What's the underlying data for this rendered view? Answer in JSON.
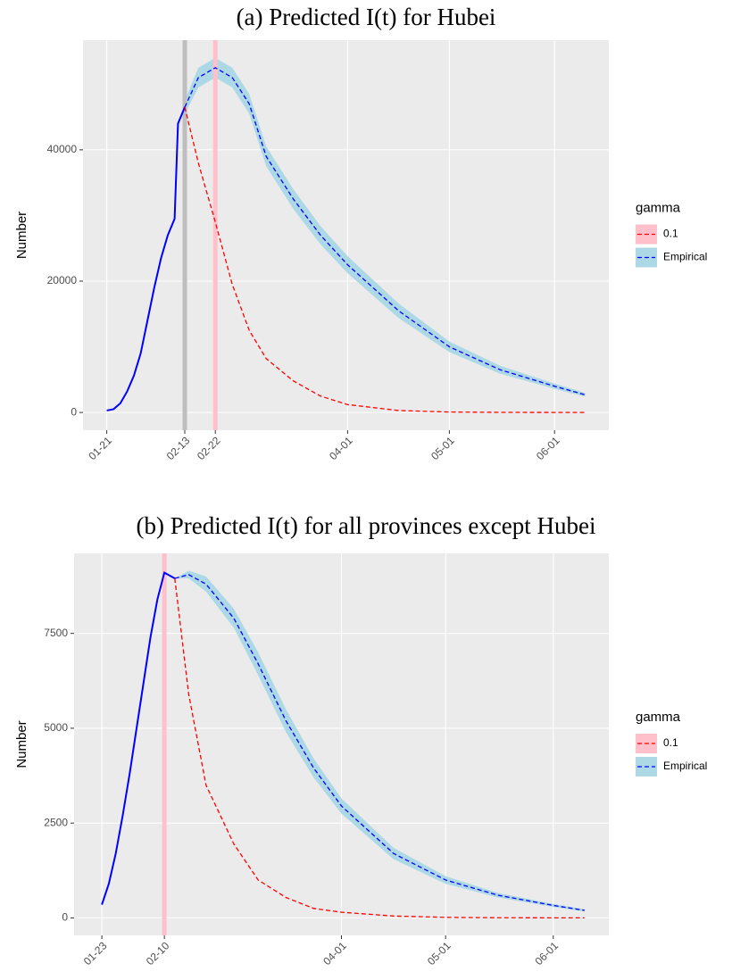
{
  "chart_data": [
    {
      "type": "line",
      "title": "(a) Predicted I(t) for Hubei",
      "ylabel": "Number",
      "legend_title": "gamma",
      "legend": "right",
      "grid": true,
      "x": [
        "01-21",
        "01-23",
        "01-25",
        "01-27",
        "01-29",
        "01-31",
        "02-02",
        "02-04",
        "02-06",
        "02-08",
        "02-10",
        "02-11",
        "02-13",
        "02-17",
        "02-22",
        "02-27",
        "03-03",
        "03-08",
        "03-16",
        "03-24",
        "04-01",
        "04-16",
        "05-01",
        "05-16",
        "06-01",
        "06-10"
      ],
      "xlim": [
        "01-14",
        "06-17"
      ],
      "xticks": [
        "01-21",
        "02-13",
        "02-22",
        "04-01",
        "05-01",
        "06-01"
      ],
      "ylim": [
        -2700,
        56700
      ],
      "yticks": [
        0,
        20000,
        40000
      ],
      "vlines": [
        {
          "x": "02-13",
          "color": "#bebebe"
        },
        {
          "x": "02-22",
          "color": "#ffc0cb"
        }
      ],
      "series": [
        {
          "color": "#0000ff",
          "linetype": "solid",
          "values": [
            300,
            500,
            1400,
            3200,
            5600,
            9000,
            14000,
            19000,
            23500,
            27000,
            29500,
            44000,
            46500,
            null,
            null,
            null,
            null,
            null,
            null,
            null,
            null,
            null,
            null,
            null,
            null,
            null
          ]
        },
        {
          "name": "0.1",
          "color": "#ff0000",
          "fill": "#ffc0cb",
          "linetype": "dashed",
          "values": [
            null,
            null,
            null,
            null,
            null,
            null,
            null,
            null,
            null,
            null,
            null,
            null,
            46500,
            38000,
            29000,
            19500,
            12500,
            8200,
            4800,
            2500,
            1200,
            300,
            70,
            20,
            5,
            2
          ]
        },
        {
          "name": "Empirical",
          "color": "#0000ff",
          "fill": "#add8e6",
          "linetype": "dashed",
          "values": [
            null,
            null,
            null,
            null,
            null,
            null,
            null,
            null,
            null,
            null,
            null,
            null,
            46500,
            51000,
            52500,
            51000,
            47000,
            39000,
            32500,
            27000,
            22500,
            15500,
            10000,
            6500,
            4000,
            2700
          ],
          "lower": [
            null,
            null,
            null,
            null,
            null,
            null,
            null,
            null,
            null,
            null,
            null,
            null,
            45500,
            49500,
            51000,
            49500,
            45500,
            37500,
            31000,
            25600,
            21200,
            14400,
            9200,
            5900,
            3600,
            2400
          ],
          "upper": [
            null,
            null,
            null,
            null,
            null,
            null,
            null,
            null,
            null,
            null,
            null,
            null,
            47500,
            52500,
            54000,
            52500,
            48500,
            40500,
            34000,
            28400,
            23800,
            16600,
            10800,
            7100,
            4400,
            3000
          ]
        }
      ]
    },
    {
      "type": "line",
      "title": "(b) Predicted I(t) for all provinces except Hubei",
      "ylabel": "Number",
      "legend_title": "gamma",
      "legend": "right",
      "grid": true,
      "x": [
        "01-23",
        "01-25",
        "01-27",
        "01-29",
        "01-31",
        "02-02",
        "02-04",
        "02-06",
        "02-08",
        "02-10",
        "02-13",
        "02-17",
        "02-22",
        "03-01",
        "03-08",
        "03-16",
        "03-24",
        "04-01",
        "04-16",
        "05-01",
        "05-16",
        "06-01",
        "06-10"
      ],
      "xlim": [
        "01-15",
        "06-17"
      ],
      "xticks": [
        "01-23",
        "02-10",
        "04-01",
        "05-01",
        "06-01"
      ],
      "ylim": [
        -460,
        9610
      ],
      "yticks": [
        0,
        2500,
        5000,
        7500
      ],
      "vlines": [
        {
          "x": "02-10",
          "color": "#ffc0cb"
        }
      ],
      "series": [
        {
          "color": "#0000ff",
          "linetype": "solid",
          "values": [
            350,
            900,
            1700,
            2700,
            3800,
            5000,
            6200,
            7400,
            8400,
            9100,
            8950,
            null,
            null,
            null,
            null,
            null,
            null,
            null,
            null,
            null,
            null,
            null,
            null
          ]
        },
        {
          "name": "0.1",
          "color": "#ff0000",
          "fill": "#ffc0cb",
          "linetype": "dashed",
          "values": [
            null,
            null,
            null,
            null,
            null,
            null,
            null,
            null,
            null,
            null,
            8950,
            5900,
            3500,
            1950,
            1000,
            540,
            250,
            150,
            50,
            15,
            5,
            2,
            1
          ]
        },
        {
          "name": "Empirical",
          "color": "#0000ff",
          "fill": "#add8e6",
          "linetype": "dashed",
          "values": [
            null,
            null,
            null,
            null,
            null,
            null,
            null,
            null,
            null,
            null,
            8950,
            9050,
            8800,
            7900,
            6700,
            5200,
            3950,
            2950,
            1700,
            1000,
            600,
            330,
            200
          ],
          "lower": [
            null,
            null,
            null,
            null,
            null,
            null,
            null,
            null,
            null,
            null,
            8950,
            8950,
            8600,
            7650,
            6400,
            4900,
            3700,
            2750,
            1550,
            900,
            540,
            290,
            170
          ],
          "upper": [
            null,
            null,
            null,
            null,
            null,
            null,
            null,
            null,
            null,
            null,
            8950,
            9150,
            9000,
            8150,
            7000,
            5500,
            4200,
            3150,
            1850,
            1100,
            660,
            370,
            230
          ]
        }
      ]
    }
  ]
}
